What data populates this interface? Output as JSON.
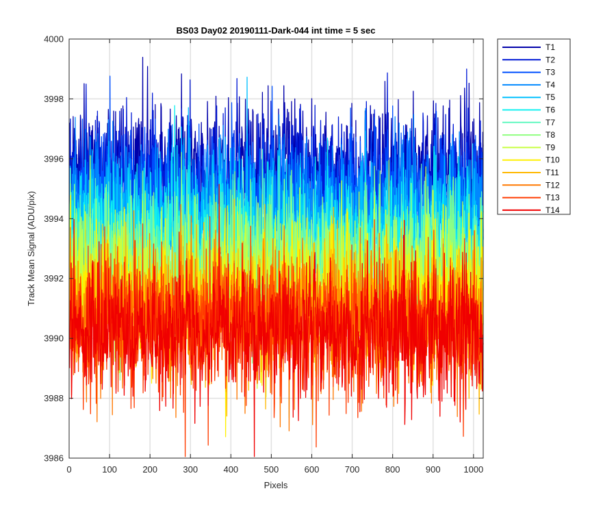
{
  "chart_data": {
    "type": "line",
    "title": "BS03 Day02 20190111-Dark-044 int time = 5 sec",
    "xlabel": "Pixels",
    "ylabel": "Track Mean Signal (ADU/pix)",
    "xlim": [
      0,
      1024
    ],
    "ylim": [
      3986,
      4000
    ],
    "xticks": [
      0,
      100,
      200,
      300,
      400,
      500,
      600,
      700,
      800,
      900,
      1000
    ],
    "yticks": [
      3986,
      3988,
      3990,
      3992,
      3994,
      3996,
      3998,
      4000
    ],
    "grid": true,
    "legend_position": "outside-top-right",
    "x_start": 1,
    "x_end": 1024,
    "series": [
      {
        "name": "T1",
        "color": "#0000AA",
        "mean": 3995.6,
        "noise": 1.2
      },
      {
        "name": "T2",
        "color": "#0019D6",
        "mean": 3995.2,
        "noise": 1.15
      },
      {
        "name": "T3",
        "color": "#0050FF",
        "mean": 3994.8,
        "noise": 1.1
      },
      {
        "name": "T4",
        "color": "#0088FF",
        "mean": 3994.3,
        "noise": 1.1
      },
      {
        "name": "T5",
        "color": "#00C0FF",
        "mean": 3993.8,
        "noise": 1.1
      },
      {
        "name": "T6",
        "color": "#10F0F0",
        "mean": 3993.3,
        "noise": 1.1
      },
      {
        "name": "T7",
        "color": "#60F8C0",
        "mean": 3992.8,
        "noise": 1.1
      },
      {
        "name": "T8",
        "color": "#90FF80",
        "mean": 3992.4,
        "noise": 1.1
      },
      {
        "name": "T9",
        "color": "#C8FF40",
        "mean": 3991.9,
        "noise": 1.1
      },
      {
        "name": "T10",
        "color": "#FFF000",
        "mean": 3991.3,
        "noise": 1.15
      },
      {
        "name": "T11",
        "color": "#FFB800",
        "mean": 3990.9,
        "noise": 1.15
      },
      {
        "name": "T12",
        "color": "#FF7800",
        "mean": 3990.6,
        "noise": 1.15
      },
      {
        "name": "T13",
        "color": "#FF3C00",
        "mean": 3990.4,
        "noise": 1.2
      },
      {
        "name": "T14",
        "color": "#F00000",
        "mean": 3990.2,
        "noise": 1.2
      }
    ]
  }
}
